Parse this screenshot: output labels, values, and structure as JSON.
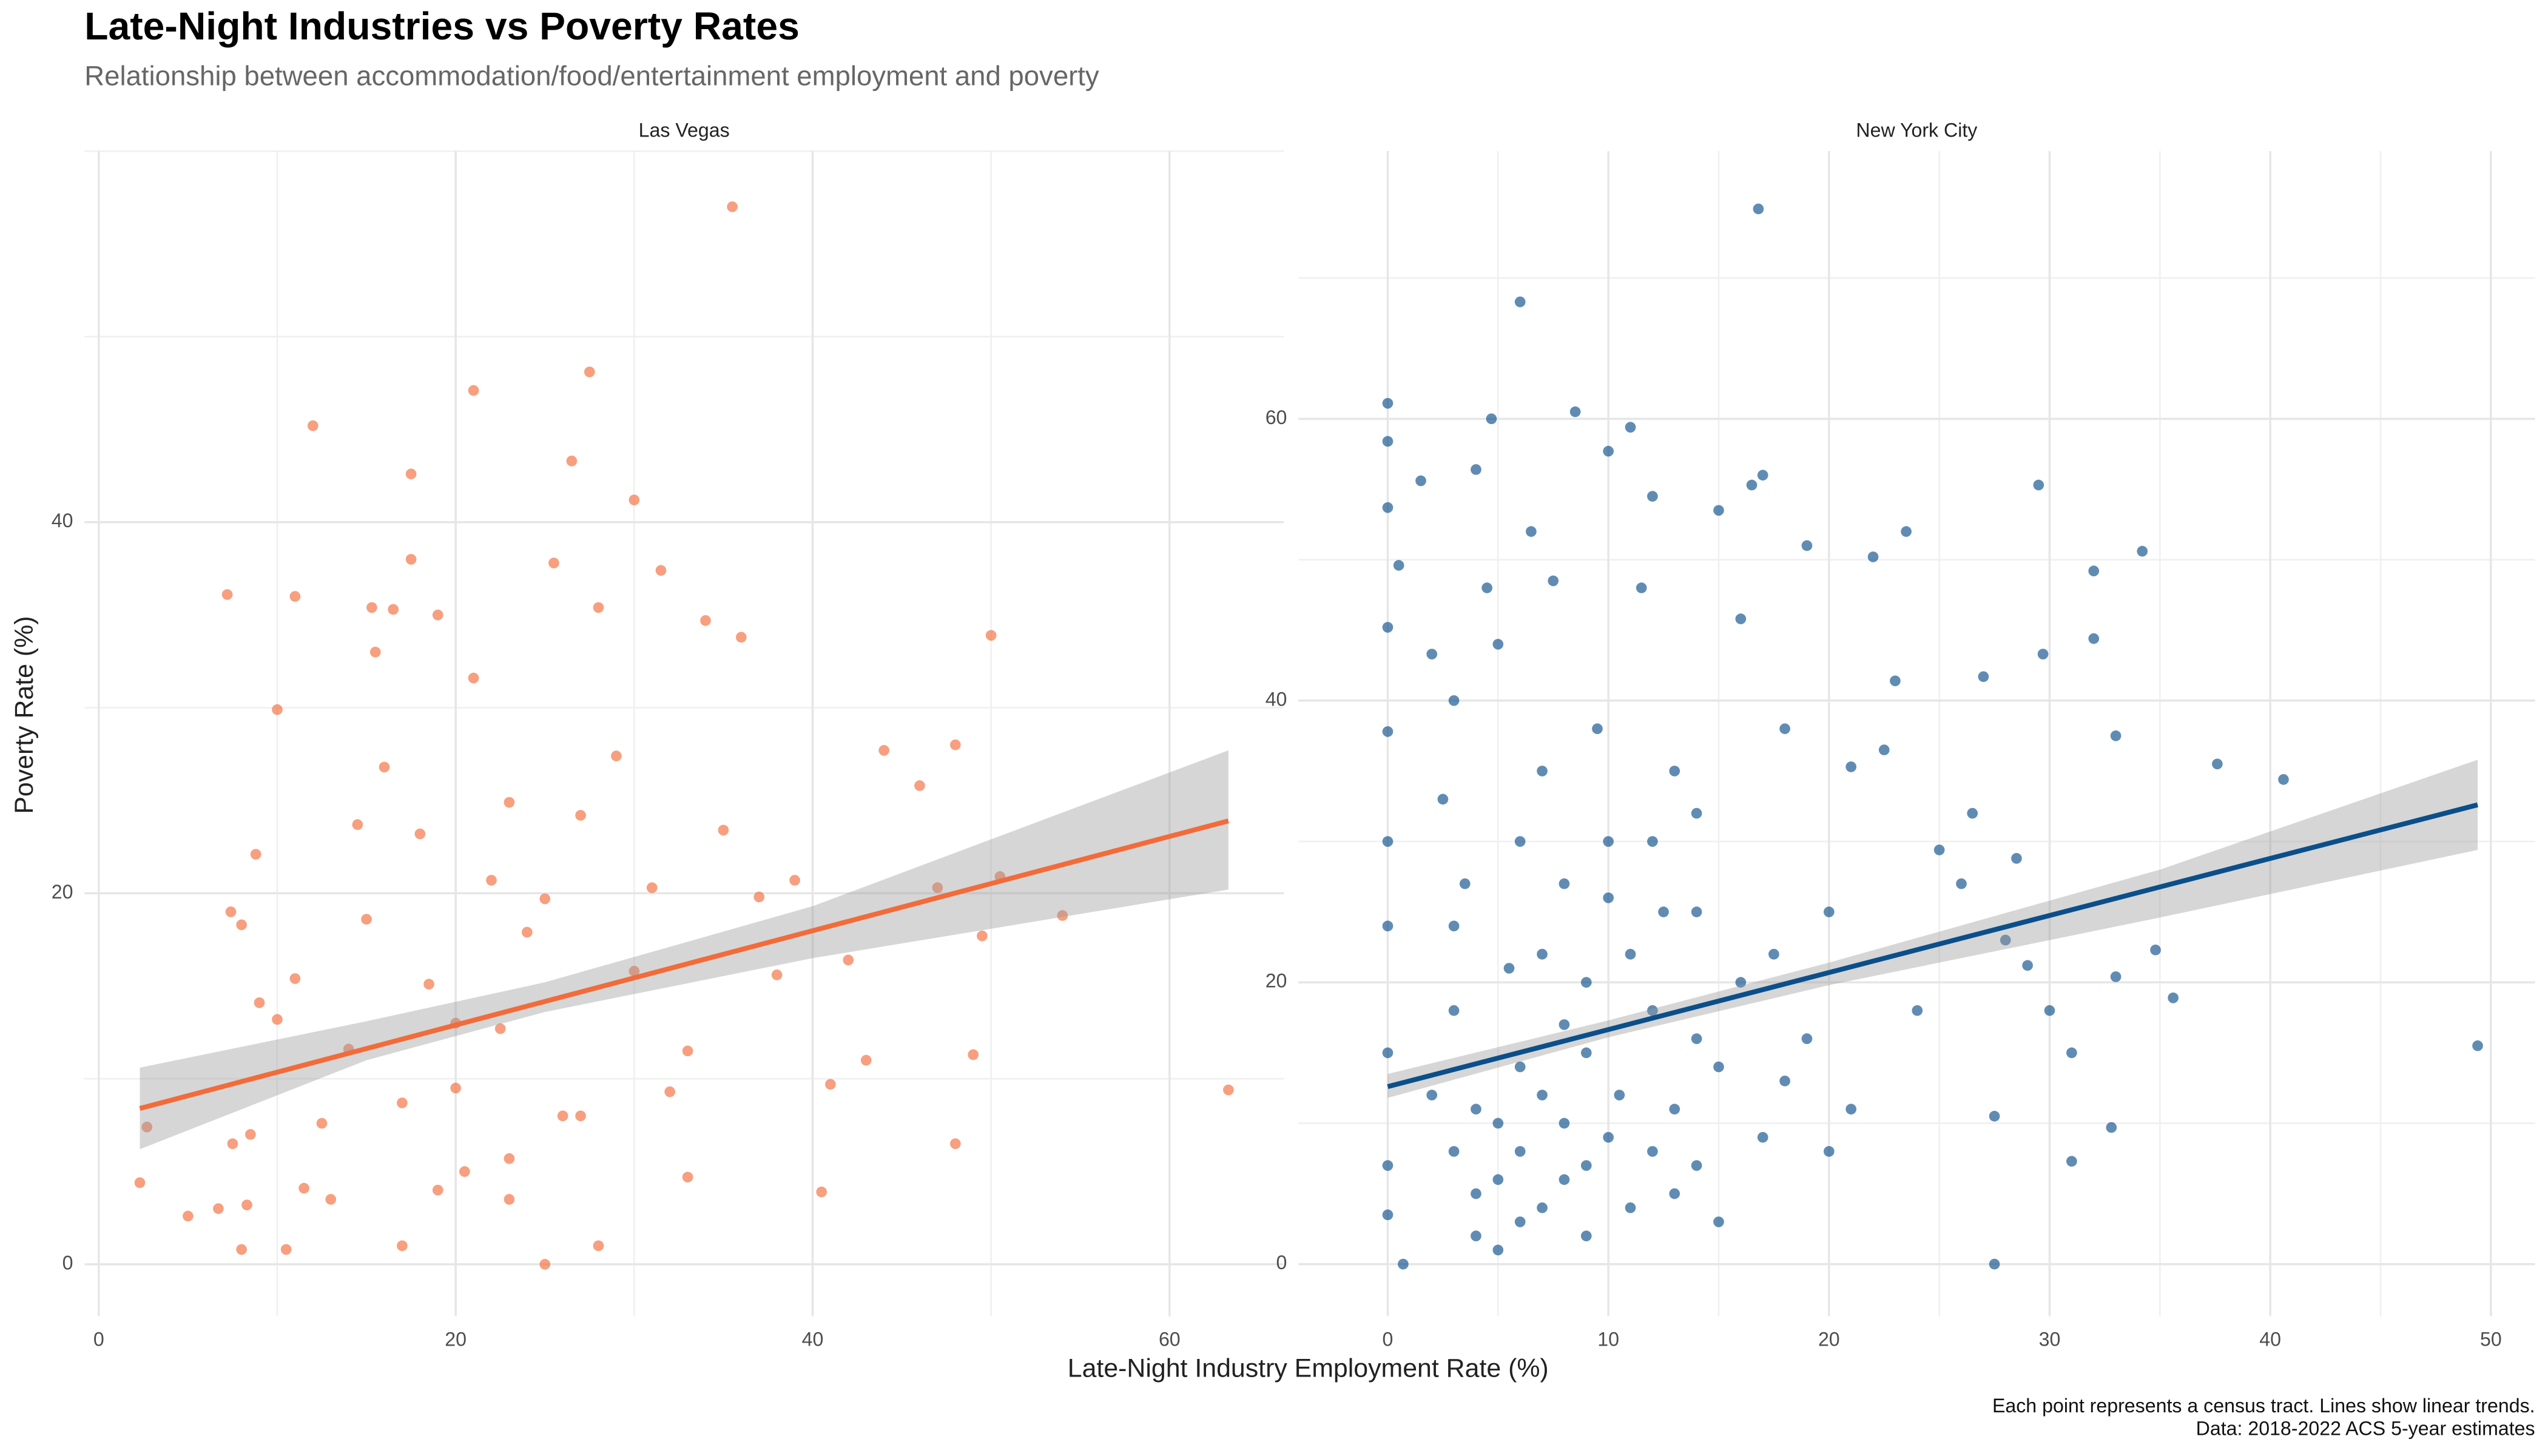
{
  "title": "Late-Night Industries vs Poverty Rates",
  "subtitle": "Relationship between accommodation/food/entertainment employment and poverty",
  "xlabel": "Late-Night Industry Employment Rate (%)",
  "ylabel": "Poverty Rate (%)",
  "caption": [
    "Each point represents a census tract. Lines show linear trends.",
    "Data: 2018-2022 ACS 5-year estimates"
  ],
  "chart_data": [
    {
      "type": "scatter",
      "title": "Las Vegas",
      "color": "#F26B3A",
      "grid": true,
      "xlim": [
        -0.8,
        66.4
      ],
      "ylim": [
        -2.8,
        60
      ],
      "xticks": [
        0,
        20,
        40,
        60
      ],
      "yticks": [
        0,
        20,
        40
      ],
      "x": [
        2.3,
        2.7,
        5,
        6.7,
        7.2,
        7.4,
        7.5,
        8,
        8,
        8.3,
        8.5,
        8.8,
        9,
        10,
        10,
        10.5,
        11,
        11,
        11.5,
        12,
        12.5,
        13,
        14,
        14.5,
        15,
        15.3,
        15.5,
        16,
        16.5,
        17,
        17,
        17.5,
        17.5,
        18,
        18.5,
        19,
        19,
        20,
        20.5,
        21,
        21,
        22,
        22.5,
        23,
        23,
        24,
        25,
        25,
        25.5,
        26,
        26.5,
        27,
        27.5,
        28,
        28,
        29,
        30,
        30,
        31,
        31.5,
        32,
        33,
        34,
        35,
        35.5,
        36,
        37,
        38,
        39,
        40.5,
        41,
        42,
        43,
        44,
        46,
        47,
        48,
        48,
        49,
        49.5,
        50,
        50.5,
        54,
        63.3,
        33,
        20,
        27,
        23
      ],
      "y": [
        4.4,
        7.4,
        2.6,
        3,
        36.1,
        19,
        6.5,
        18.3,
        0.8,
        3.2,
        7,
        22.1,
        14.1,
        29.9,
        13.2,
        0.8,
        36,
        15.4,
        4.1,
        45.2,
        7.6,
        3.5,
        11.6,
        23.7,
        18.6,
        35.4,
        33,
        26.8,
        35.3,
        8.7,
        1,
        42.6,
        38,
        23.2,
        15.1,
        35,
        4,
        9.5,
        5,
        47.1,
        31.6,
        20.7,
        12.7,
        24.9,
        5.7,
        17.9,
        0,
        19.7,
        37.8,
        8,
        43.3,
        24.2,
        48.1,
        1,
        35.4,
        27.4,
        41.2,
        15.8,
        20.3,
        37.4,
        9.3,
        11.5,
        34.7,
        23.4,
        57,
        33.8,
        19.8,
        15.6,
        20.7,
        3.9,
        9.7,
        16.4,
        11,
        27.7,
        25.8,
        20.3,
        28,
        6.5,
        11.3,
        17.7,
        33.9,
        20.9,
        18.8,
        9.4,
        4.7,
        13,
        8,
        3.5
      ],
      "trend": {
        "x": [
          2.3,
          63.3
        ],
        "y": [
          8.4,
          23.9
        ]
      },
      "band": {
        "x": [
          2.3,
          15,
          25,
          40,
          63.3
        ],
        "lower": [
          6.2,
          11,
          13.6,
          16.5,
          20.2
        ],
        "upper": [
          10.6,
          13.1,
          15.2,
          19.3,
          27.7
        ]
      }
    },
    {
      "type": "scatter",
      "title": "New York City",
      "color": "#0B4F8A",
      "grid": true,
      "xlim": [
        -4.05,
        52
      ],
      "ylim": [
        -3.7,
        79
      ],
      "xticks": [
        0,
        10,
        20,
        30,
        40,
        50
      ],
      "yticks": [
        0,
        20,
        40,
        60
      ],
      "x": [
        0,
        0,
        0,
        0,
        0,
        0,
        0,
        0,
        0,
        0,
        0.5,
        0.7,
        1.5,
        2,
        2.5,
        3,
        3.5,
        4,
        4.5,
        4.7,
        5,
        5.5,
        6,
        6,
        6.5,
        7,
        7.5,
        8,
        8.5,
        9,
        9.5,
        10,
        10.5,
        11,
        11.5,
        12,
        12.5,
        13,
        14,
        15,
        16,
        16.5,
        16.8,
        17,
        17.5,
        18,
        19,
        20,
        21,
        22,
        22.5,
        23,
        23.5,
        24,
        25,
        26,
        26.5,
        27,
        27.5,
        27.5,
        28,
        28.5,
        29,
        29.5,
        29.7,
        30,
        31,
        31,
        32,
        32,
        33,
        33,
        32.8,
        34.2,
        34.8,
        35.6,
        37.6,
        40.6,
        49.4,
        3,
        4,
        5,
        6,
        7,
        8,
        9,
        10,
        11,
        12,
        13,
        14,
        15,
        16,
        17,
        18,
        19,
        20,
        21,
        2,
        3,
        4,
        5,
        6,
        7,
        8,
        9,
        10,
        11,
        12,
        13,
        14,
        15,
        6,
        5,
        4,
        7,
        8,
        9,
        3,
        10,
        12,
        14
      ],
      "y": [
        61.1,
        58.4,
        53.7,
        45.2,
        37.8,
        30,
        24,
        15,
        7,
        3.5,
        49.6,
        0,
        55.6,
        43.3,
        33,
        40,
        27,
        56.4,
        48,
        60,
        44,
        21,
        68.3,
        30,
        52,
        35,
        48.5,
        27,
        60.5,
        20,
        38,
        57.7,
        12,
        59.4,
        48,
        54.5,
        25,
        35,
        32,
        53.5,
        45.8,
        55.3,
        74.9,
        56,
        22,
        38,
        51,
        25,
        35.3,
        50.2,
        36.5,
        41.4,
        52,
        18,
        29.4,
        27,
        32,
        41.7,
        0,
        10.5,
        23,
        28.8,
        21.2,
        55.3,
        43.3,
        18,
        7.3,
        15,
        49.2,
        44.4,
        37.5,
        20.4,
        9.7,
        50.6,
        22.3,
        18.9,
        35.5,
        34.4,
        15.5,
        8,
        5,
        10,
        3,
        12,
        6,
        15,
        9,
        4,
        18,
        11,
        7,
        14,
        20,
        9,
        13,
        16,
        8,
        11,
        12,
        18,
        2,
        1,
        14,
        22,
        17,
        2,
        26,
        22,
        8,
        5,
        16,
        3,
        8,
        6,
        11,
        4,
        10,
        7,
        24,
        30,
        30,
        25
      ],
      "trend": {
        "x": [
          0,
          49.4
        ],
        "y": [
          12.6,
          32.6
        ]
      },
      "band": {
        "x": [
          0,
          10,
          20,
          35,
          49.4
        ],
        "lower": [
          11.8,
          16.1,
          19.8,
          24.6,
          29.4
        ],
        "upper": [
          13.5,
          17.3,
          21.4,
          28,
          35.8
        ]
      }
    }
  ]
}
